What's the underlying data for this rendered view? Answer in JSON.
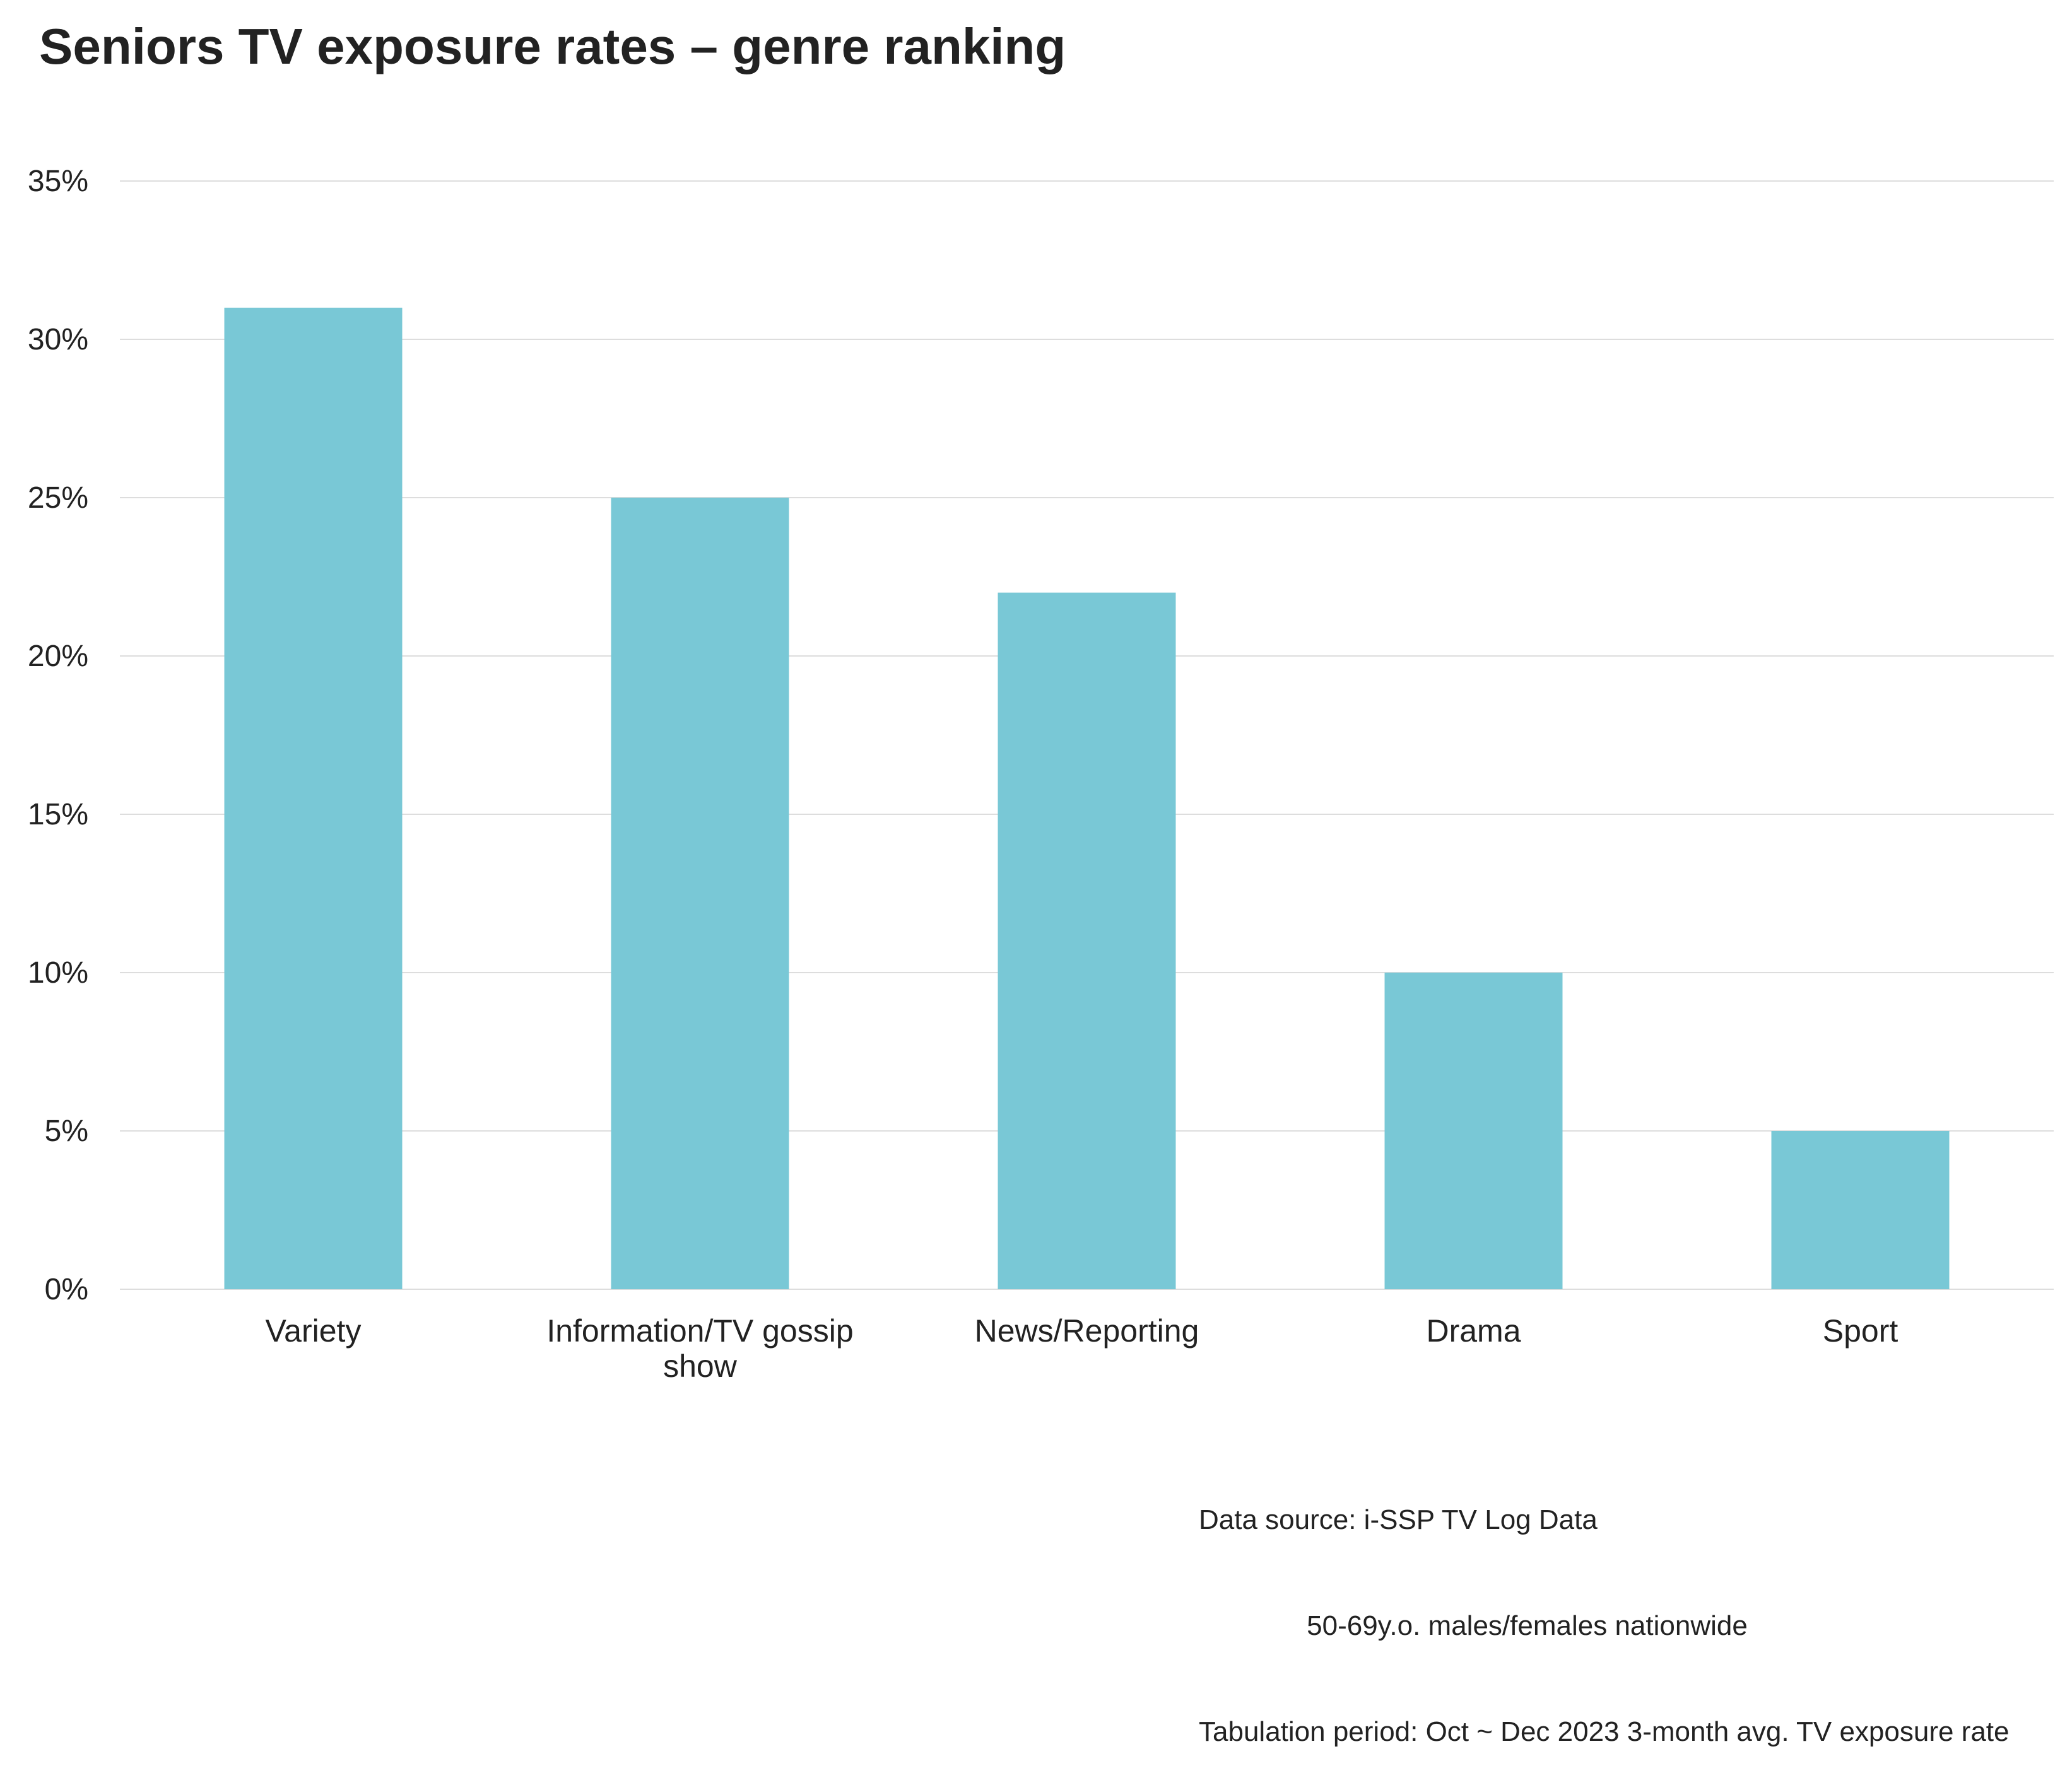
{
  "chart_data": {
    "type": "bar",
    "title": "Seniors TV exposure rates – genre ranking",
    "xlabel": "",
    "ylabel": "",
    "categories": [
      "Variety",
      "Information/TV gossip show",
      "News/Reporting",
      "Drama",
      "Sport"
    ],
    "category_lines": [
      [
        "Variety"
      ],
      [
        "Information/TV gossip",
        "show"
      ],
      [
        "News/Reporting"
      ],
      [
        "Drama"
      ],
      [
        "Sport"
      ]
    ],
    "values": [
      31,
      25,
      22,
      10,
      5
    ],
    "ylim": [
      0,
      35
    ],
    "yticks": [
      0,
      5,
      10,
      15,
      20,
      25,
      30,
      35
    ],
    "ytick_labels": [
      "0%",
      "5%",
      "10%",
      "15%",
      "20%",
      "25%",
      "30%",
      "35%"
    ],
    "grid": true,
    "bar_color": "#79c8d6",
    "grid_color": "#dddddd"
  },
  "source": {
    "line1": "Data source: i-SSP TV Log Data",
    "line2": "              50-69y.o. males/females nationwide",
    "line3": "Tabulation period: Oct ~ Dec 2023 3-month avg. TV exposure rate"
  }
}
